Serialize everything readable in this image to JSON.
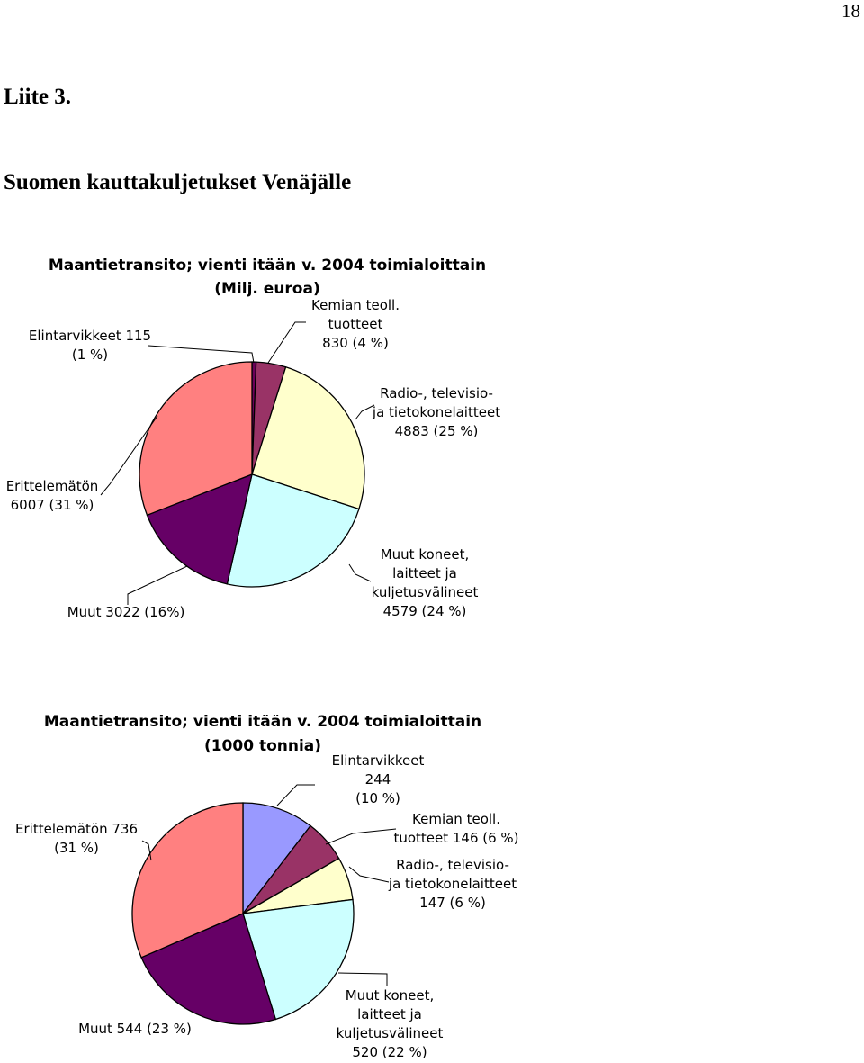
{
  "page_number": "18",
  "appendix_label": "Liite 3.",
  "document_title": "Suomen kauttakuljetukset Venäjälle",
  "chart_data": [
    {
      "type": "pie",
      "title": "Maantietransito; vienti itään v. 2004 toimialoittain",
      "subtitle": "(Milj. euroa)",
      "slices": [
        {
          "name": "Elintarvikkeet",
          "value": 115,
          "percent": "1",
          "label_lines": [
            "Elintarvikkeet 115",
            "(1 %)"
          ],
          "color": "#6b0059"
        },
        {
          "name": "Kemian teoll. tuotteet",
          "value": 830,
          "percent": "4",
          "label_lines": [
            "Kemian teoll.",
            "tuotteet",
            "830 (4 %)"
          ],
          "color": "#993366"
        },
        {
          "name": "Radio-, televisio- ja tietokonelaitteet",
          "value": 4883,
          "percent": "25",
          "label_lines": [
            "Radio-, televisio-",
            "ja tietokonelaitteet",
            "4883 (25 %)"
          ],
          "color": "#ffffcc"
        },
        {
          "name": "Muut koneet, laitteet ja kuljetusvälineet",
          "value": 4579,
          "percent": "24",
          "label_lines": [
            "Muut koneet,",
            "laitteet ja",
            "kuljetusvälineet",
            "4579 (24 %)"
          ],
          "color": "#ccffff"
        },
        {
          "name": "Muut",
          "value": 3022,
          "percent": "16",
          "label_lines": [
            "Muut  3022 (16%)"
          ],
          "color": "#660066"
        },
        {
          "name": "Erittelemätön",
          "value": 6007,
          "percent": "31",
          "label_lines": [
            "Erittelemätön",
            "6007 (31 %)"
          ],
          "color": "#ff8080"
        }
      ]
    },
    {
      "type": "pie",
      "title": "Maantietransito; vienti itään v. 2004 toimialoittain",
      "subtitle": "(1000 tonnia)",
      "slices": [
        {
          "name": "Elintarvikkeet",
          "value": 244,
          "percent": "10",
          "label_lines": [
            "Elintarvikkeet",
            "244",
            "(10 %)"
          ],
          "color": "#9999ff"
        },
        {
          "name": "Kemian teoll. tuotteet",
          "value": 146,
          "percent": "6",
          "label_lines": [
            "Kemian teoll.",
            "tuotteet 146 (6 %)"
          ],
          "color": "#993366"
        },
        {
          "name": "Radio-, televisio- ja tietokonelaitteet",
          "value": 147,
          "percent": "6",
          "label_lines": [
            "Radio-, televisio-",
            "ja tietokonelaitteet",
            "147        (6 %)"
          ],
          "color": "#ffffcc"
        },
        {
          "name": "Muut koneet, laitteet ja kuljetusvälineet",
          "value": 520,
          "percent": "22",
          "label_lines": [
            "Muut koneet,",
            "laitteet ja",
            "kuljetusvälineet",
            "520 (22 %)"
          ],
          "color": "#ccffff"
        },
        {
          "name": "Muut",
          "value": 544,
          "percent": "23",
          "label_lines": [
            "Muut 544 (23 %)"
          ],
          "color": "#660066"
        },
        {
          "name": "Erittelemätön",
          "value": 736,
          "percent": "31",
          "label_lines": [
            "Erittelemätön  736",
            "(31 %)"
          ],
          "color": "#ff8080"
        }
      ]
    }
  ]
}
